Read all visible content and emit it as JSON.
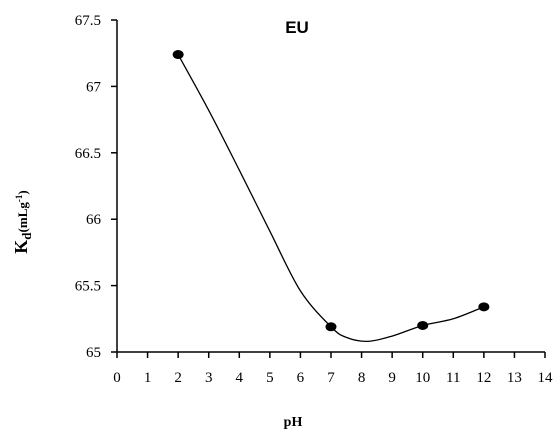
{
  "chart_data": {
    "type": "line",
    "title": "EU",
    "xlabel": "pH",
    "ylabel": {
      "main": "K",
      "sub": "d",
      "unit": "(mLg",
      "sup": "-1",
      "close": ")"
    },
    "xlim": [
      0,
      14
    ],
    "ylim": [
      65,
      67.5
    ],
    "xticks": [
      "0",
      "1",
      "2",
      "3",
      "4",
      "5",
      "6",
      "7",
      "8",
      "9",
      "10",
      "11",
      "12",
      "13",
      "14"
    ],
    "yticks": [
      "65",
      "65.5",
      "66",
      "66.5",
      "67",
      "67.5"
    ],
    "grid": false,
    "series": [
      {
        "points": [
          [
            2,
            67.24
          ],
          [
            7,
            65.19
          ],
          [
            10,
            65.2
          ],
          [
            12,
            65.34
          ]
        ],
        "curve": [
          [
            2,
            67.24
          ],
          [
            3,
            66.82
          ],
          [
            4,
            66.37
          ],
          [
            5,
            65.91
          ],
          [
            6,
            65.46
          ],
          [
            7,
            65.19
          ],
          [
            7.5,
            65.11
          ],
          [
            8.2,
            65.08
          ],
          [
            9,
            65.12
          ],
          [
            10,
            65.2
          ],
          [
            11,
            65.25
          ],
          [
            12,
            65.34
          ]
        ],
        "color": "#000000"
      }
    ]
  }
}
